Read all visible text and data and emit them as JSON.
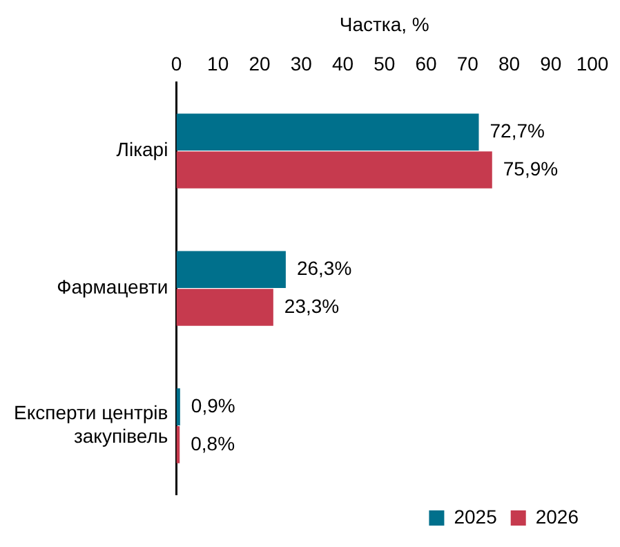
{
  "chart_data": {
    "type": "bar",
    "orientation": "horizontal",
    "xlabel": "Частка, %",
    "categories": [
      "Лікарі",
      "Фармацевти",
      "Експерти центрів закупівель"
    ],
    "series": [
      {
        "name": "2025",
        "color": "#00708c",
        "values": [
          72.7,
          26.3,
          0.9
        ],
        "value_labels": [
          "72,7%",
          "26,3%",
          "0,9%"
        ]
      },
      {
        "name": "2026",
        "color": "#c63a4e",
        "values": [
          75.9,
          23.3,
          0.8
        ],
        "value_labels": [
          "75,9%",
          "23,3%",
          "0,8%"
        ]
      }
    ],
    "xlim": [
      0,
      100
    ],
    "xticks": [
      0,
      10,
      20,
      30,
      40,
      50,
      60,
      70,
      80,
      90,
      100
    ],
    "grid": false,
    "legend": "bottom right"
  }
}
